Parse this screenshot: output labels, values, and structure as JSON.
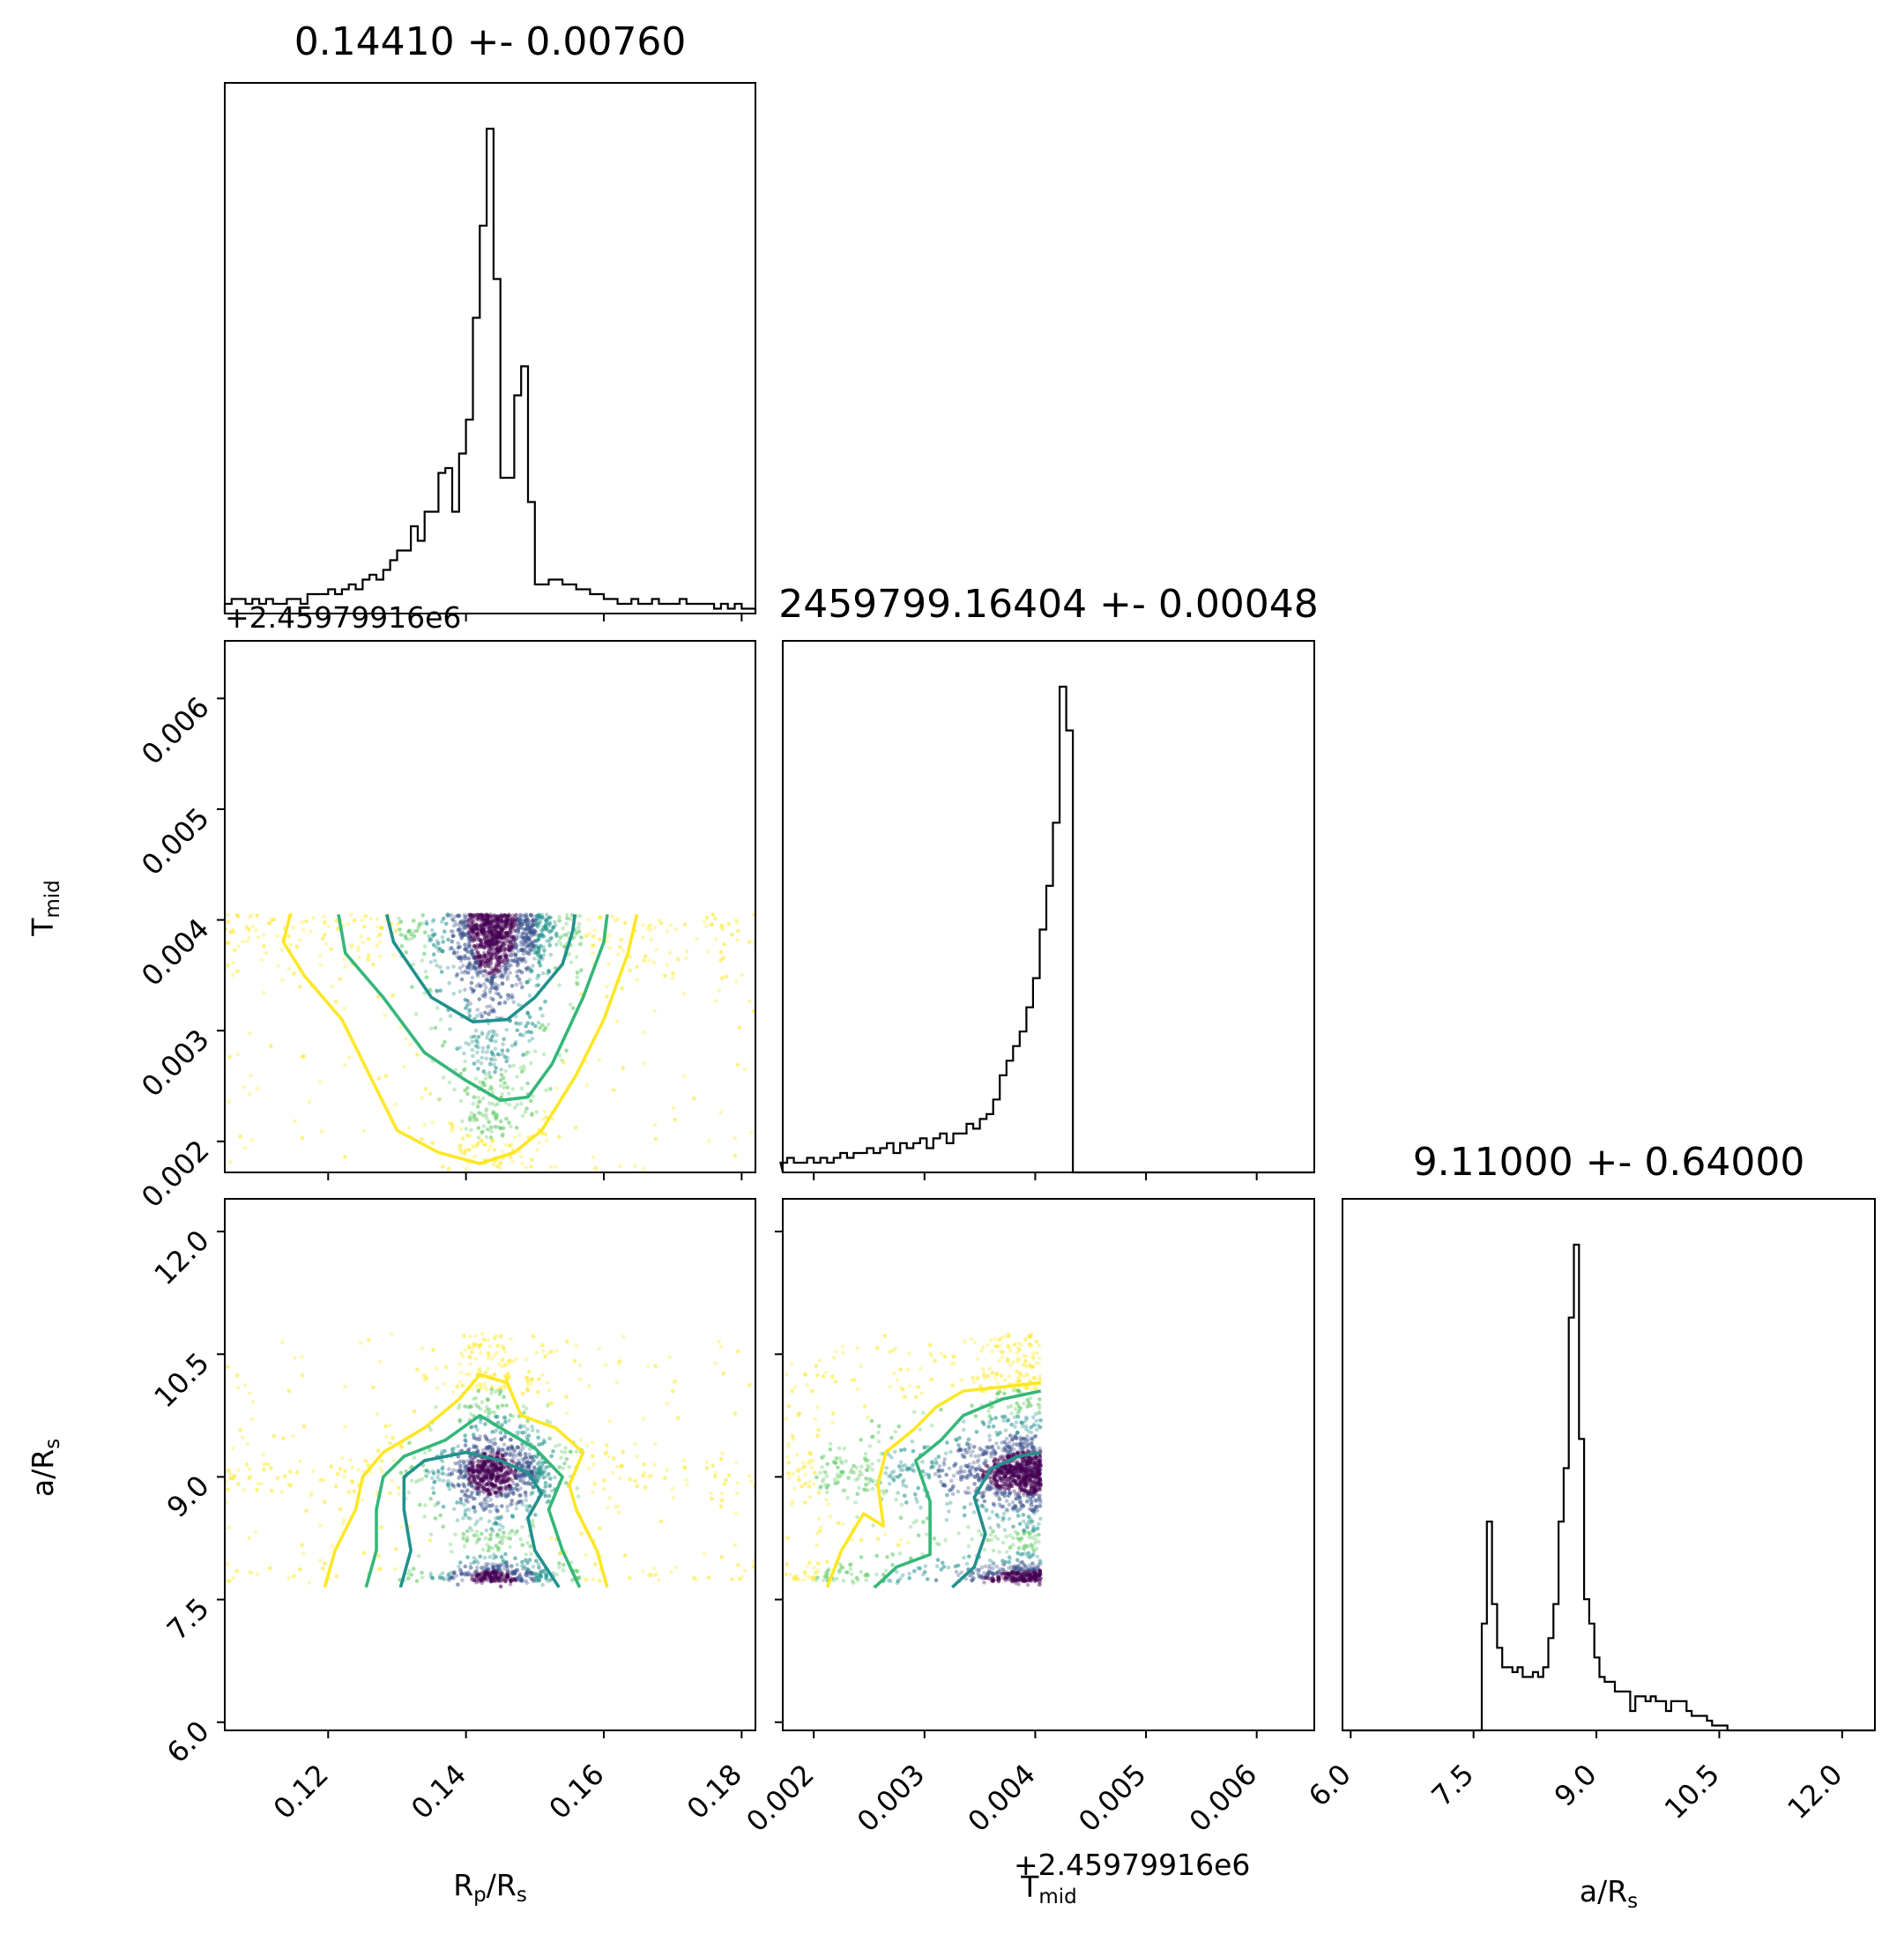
{
  "chart_data": {
    "type": "corner",
    "parameters": [
      "Rp/Rs",
      "T_mid",
      "a/Rs"
    ],
    "axis_labels": {
      "rp": {
        "main": "R",
        "sub": "p",
        "tail": "/R",
        "sub2": "s"
      },
      "tmid": {
        "main": "T",
        "sub": "mid"
      },
      "ars": {
        "main": "a/R",
        "sub": "s"
      }
    },
    "offset_text": "+2.45979916e6",
    "titles": [
      "0.14410 +- 0.00760",
      "2459799.16404 +- 0.00048",
      "9.11000 +- 0.64000"
    ],
    "axes": {
      "rp": {
        "range": [
          0.105,
          0.182
        ],
        "ticks": [
          0.12,
          0.14,
          0.16,
          0.18
        ],
        "tick_labels": [
          "0.12",
          "0.14",
          "0.16",
          "0.18"
        ]
      },
      "tmid": {
        "range": [
          0.00172,
          0.00652
        ],
        "ticks": [
          0.002,
          0.003,
          0.004,
          0.005,
          0.006
        ],
        "tick_labels": [
          "0.002",
          "0.003",
          "0.004",
          "0.005",
          "0.006"
        ]
      },
      "ars": {
        "range": [
          5.9,
          12.4
        ],
        "ticks": [
          6.0,
          7.5,
          9.0,
          10.5,
          12.0
        ],
        "tick_labels": [
          "6.0",
          "7.5",
          "9.0",
          "10.5",
          "12.0"
        ]
      }
    },
    "histograms": {
      "rp": {
        "x_start": 0.105,
        "bin_width": 0.001,
        "counts": [
          0.02,
          0.03,
          0.03,
          0.02,
          0.03,
          0.02,
          0.03,
          0.02,
          0.02,
          0.03,
          0.03,
          0.02,
          0.04,
          0.04,
          0.04,
          0.05,
          0.04,
          0.05,
          0.06,
          0.05,
          0.07,
          0.08,
          0.07,
          0.09,
          0.11,
          0.13,
          0.13,
          0.18,
          0.15,
          0.21,
          0.21,
          0.29,
          0.3,
          0.21,
          0.33,
          0.4,
          0.61,
          0.8,
          1.0,
          0.69,
          0.28,
          0.28,
          0.45,
          0.51,
          0.23,
          0.06,
          0.06,
          0.07,
          0.07,
          0.06,
          0.06,
          0.05,
          0.05,
          0.04,
          0.04,
          0.03,
          0.03,
          0.02,
          0.02,
          0.03,
          0.02,
          0.02,
          0.03,
          0.02,
          0.02,
          0.02,
          0.03,
          0.02,
          0.02,
          0.02,
          0.02,
          0.01,
          0.02,
          0.01,
          0.02,
          0.01,
          0.01
        ]
      },
      "tmid": {
        "x_start": 0.0017,
        "bin_width": 6e-05,
        "counts": [
          0.02,
          0.03,
          0.02,
          0.02,
          0.03,
          0.02,
          0.03,
          0.02,
          0.03,
          0.04,
          0.03,
          0.04,
          0.04,
          0.05,
          0.04,
          0.05,
          0.06,
          0.04,
          0.06,
          0.05,
          0.06,
          0.07,
          0.05,
          0.07,
          0.08,
          0.06,
          0.08,
          0.08,
          0.1,
          0.09,
          0.11,
          0.12,
          0.15,
          0.2,
          0.23,
          0.26,
          0.29,
          0.34,
          0.4,
          0.5,
          0.59,
          0.72,
          1.0,
          0.91
        ]
      },
      "ars": {
        "x_start": 7.6,
        "bin_width": 0.0625,
        "counts": [
          0.22,
          0.43,
          0.26,
          0.17,
          0.13,
          0.13,
          0.12,
          0.13,
          0.11,
          0.11,
          0.12,
          0.11,
          0.13,
          0.19,
          0.26,
          0.43,
          0.54,
          0.85,
          1.0,
          0.6,
          0.27,
          0.22,
          0.15,
          0.11,
          0.1,
          0.1,
          0.08,
          0.08,
          0.08,
          0.04,
          0.07,
          0.07,
          0.06,
          0.07,
          0.06,
          0.06,
          0.04,
          0.06,
          0.06,
          0.06,
          0.04,
          0.03,
          0.03,
          0.03,
          0.02,
          0.01,
          0.01,
          0.01
        ]
      }
    },
    "contour_colors": [
      "#fde725",
      "#35b779",
      "#21918c"
    ],
    "point_colors": [
      "#fde725",
      "#5ec962",
      "#21918c",
      "#3b528b",
      "#440154"
    ]
  }
}
